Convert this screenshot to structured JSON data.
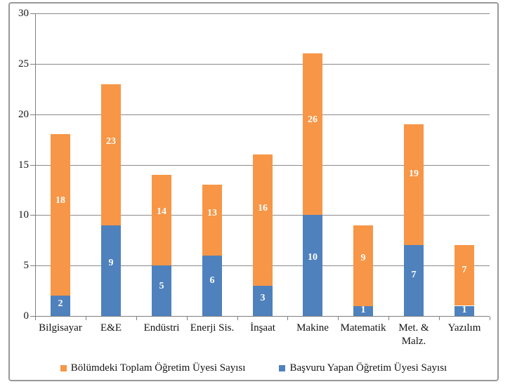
{
  "chart_data": {
    "type": "bar",
    "subtype": "overlapped-columns-total-vs-subset",
    "title": "",
    "categories": [
      "Bilgisayar",
      "E&E",
      "Endüstri",
      "Enerji Sis.",
      "İnşaat",
      "Makine",
      "Matematik",
      "Met. &\nMalz.",
      "Yazılım"
    ],
    "series": [
      {
        "name": "Bölümdeki Toplam Öğretim Üyesi Sayısı",
        "color": "#F79646",
        "values": [
          18,
          23,
          14,
          13,
          16,
          26,
          9,
          19,
          7
        ]
      },
      {
        "name": "Başvuru Yapan Öğretim Üyesi Sayısı",
        "color": "#4F81BD",
        "values": [
          2,
          9,
          5,
          6,
          3,
          10,
          1,
          7,
          1
        ]
      }
    ],
    "ylim": [
      0,
      30
    ],
    "yticks": [
      0,
      5,
      10,
      15,
      20,
      25,
      30
    ],
    "xlabel": "",
    "ylabel": "",
    "grid": "horizontal-major",
    "legend_position": "bottom",
    "data_labels": "inside-white-bold"
  },
  "style": {
    "gridline_color": "#8A8A8A",
    "axis_color": "#7F7F7F",
    "frame_border_color": "#999999",
    "text_color": "#141414",
    "bar_label_color": "#FFFFFF",
    "background": "#FFFFFF"
  }
}
